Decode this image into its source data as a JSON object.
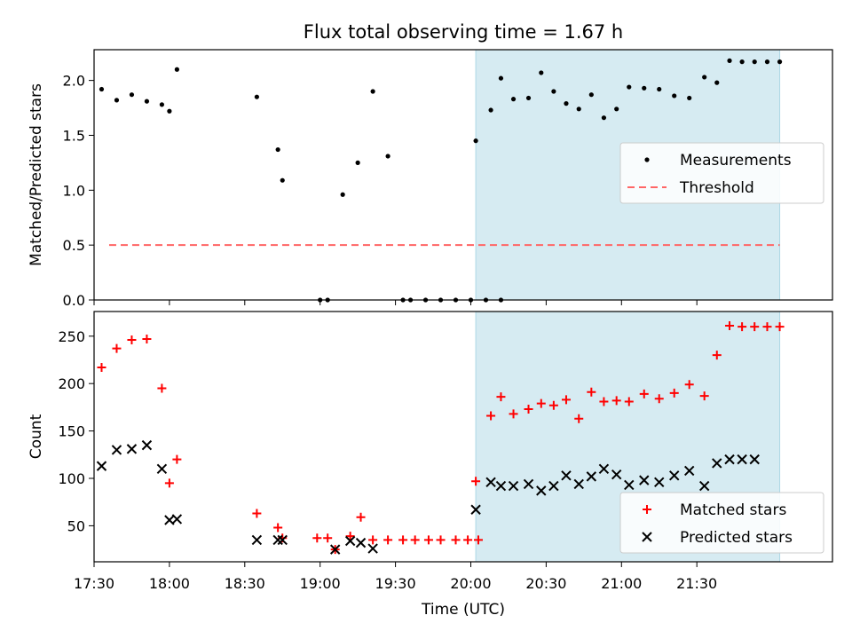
{
  "title": "Flux total observing time = 1.67 h",
  "colors": {
    "highlight": "#add8e6",
    "threshold": "#ff6666",
    "matched": "#ff0000",
    "predicted": "#000000",
    "measure": "#000000"
  },
  "chart_data": [
    {
      "type": "scatter",
      "ylabel": "Matched/Predicted stars",
      "ylim": [
        0,
        2.28
      ],
      "yticks": [
        "0.0",
        "0.5",
        "1.0",
        "1.5",
        "2.0"
      ],
      "highlight_x": [
        20.033,
        22.05
      ],
      "threshold": 0.5,
      "threshold_x": [
        17.6,
        22.05
      ],
      "legend": {
        "position": "center-right",
        "labels": [
          "Measurements",
          "Threshold"
        ]
      },
      "series": [
        {
          "name": "Measurements",
          "marker": "dot",
          "x": [
            17.55,
            17.65,
            17.75,
            17.85,
            17.95,
            18.0,
            18.05,
            18.58,
            18.72,
            18.75,
            19.0,
            19.05,
            19.15,
            19.25,
            19.35,
            19.45,
            19.55,
            19.6,
            19.7,
            19.8,
            19.9,
            20.0,
            20.1,
            20.2,
            20.033,
            20.133,
            20.2,
            20.283,
            20.383,
            20.467,
            20.55,
            20.633,
            20.717,
            20.8,
            20.883,
            20.967,
            21.05,
            21.15,
            21.25,
            21.35,
            21.45,
            21.55,
            21.633,
            21.717,
            21.8,
            21.883,
            21.967,
            22.05
          ],
          "y": [
            1.92,
            1.82,
            1.87,
            1.81,
            1.78,
            1.72,
            2.1,
            1.85,
            1.37,
            1.09,
            0,
            0,
            0.96,
            1.25,
            1.9,
            1.31,
            0,
            0,
            0,
            0,
            0,
            0,
            0,
            0,
            1.45,
            1.73,
            2.02,
            1.83,
            1.84,
            2.07,
            1.9,
            1.79,
            1.74,
            1.87,
            1.66,
            1.74,
            1.94,
            1.93,
            1.92,
            1.86,
            1.84,
            2.03,
            1.98,
            2.18,
            2.17,
            2.17,
            2.17,
            2.17
          ]
        }
      ]
    },
    {
      "type": "scatter",
      "xlabel": "Time (UTC)",
      "ylabel": "Count",
      "ylim": [
        12,
        276
      ],
      "yticks": [
        "50",
        "100",
        "150",
        "200",
        "250"
      ],
      "xticks": [
        "17:30",
        "18:00",
        "18:30",
        "19:00",
        "19:30",
        "20:00",
        "20:30",
        "21:00",
        "21:30"
      ],
      "highlight_x": [
        20.033,
        22.05
      ],
      "legend": {
        "position": "lower-right",
        "labels": [
          "Matched stars",
          "Predicted stars"
        ]
      },
      "series": [
        {
          "name": "Matched stars",
          "marker": "plus",
          "x": [
            17.55,
            17.65,
            17.75,
            17.85,
            17.95,
            18.0,
            18.05,
            18.58,
            18.72,
            18.75,
            18.98,
            19.05,
            19.1,
            19.2,
            19.27,
            19.35,
            19.45,
            19.55,
            19.63,
            19.72,
            19.8,
            19.9,
            19.98,
            20.05,
            20.033,
            20.133,
            20.2,
            20.283,
            20.383,
            20.467,
            20.55,
            20.633,
            20.717,
            20.8,
            20.883,
            20.967,
            21.05,
            21.15,
            21.25,
            21.35,
            21.45,
            21.55,
            21.633,
            21.717,
            21.8,
            21.883,
            21.967,
            22.05
          ],
          "y": [
            217,
            237,
            246,
            247,
            195,
            95,
            120,
            63,
            48,
            37,
            37,
            37,
            25,
            39,
            59,
            35,
            35,
            35,
            35,
            35,
            35,
            35,
            35,
            35,
            97,
            166,
            186,
            168,
            173,
            179,
            177,
            183,
            163,
            191,
            181,
            182,
            181,
            189,
            184,
            190,
            199,
            187,
            230,
            261,
            260,
            260,
            260,
            260
          ]
        },
        {
          "name": "Predicted stars",
          "marker": "x",
          "x": [
            17.55,
            17.65,
            17.75,
            17.85,
            17.95,
            18.0,
            18.05,
            18.58,
            18.72,
            18.75,
            19.1,
            19.2,
            19.27,
            19.35,
            20.033,
            20.133,
            20.2,
            20.283,
            20.383,
            20.467,
            20.55,
            20.633,
            20.717,
            20.8,
            20.883,
            20.967,
            21.05,
            21.15,
            21.25,
            21.35,
            21.45,
            21.55,
            21.633,
            21.717,
            21.8,
            21.883
          ],
          "y": [
            113,
            130,
            131,
            135,
            110,
            56,
            57,
            35,
            35,
            35,
            25,
            34,
            32,
            26,
            67,
            96,
            92,
            92,
            94,
            87,
            92,
            103,
            94,
            102,
            110,
            104,
            93,
            98,
            96,
            103,
            108,
            92,
            116,
            120,
            120,
            120
          ]
        }
      ]
    }
  ]
}
